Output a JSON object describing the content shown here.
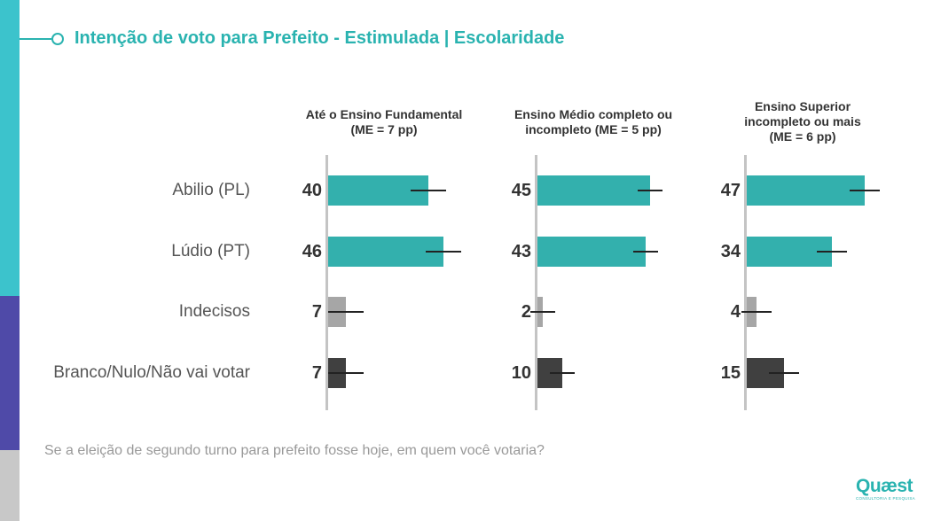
{
  "title": "Intenção de voto para Prefeito - Estimulada | Escolaridade",
  "footer": "Se a eleição de segundo turno para prefeito fosse hoje, em quem você votaria?",
  "logo": {
    "name": "Quæst",
    "tagline": "CONSULTORIA E PESQUISA"
  },
  "colors": {
    "accent": "#2ab3b0",
    "bar_candidate": "#33b0ad",
    "bar_undecided": "#a6a6a6",
    "bar_blank": "#404040",
    "sidebar": [
      "#3cc3cc",
      "#4f4aa8",
      "#c8c8c8"
    ]
  },
  "chart_data": {
    "type": "bar",
    "orientation": "horizontal",
    "categories": [
      "Abilio (PL)",
      "Lúdio (PT)",
      "Indecisos",
      "Branco/Nulo/Não vai votar"
    ],
    "panels": [
      {
        "title_lines": [
          "Até o Ensino Fundamental",
          "(ME = 7 pp)"
        ],
        "margin_of_error": 7,
        "values": [
          40,
          46,
          7,
          7
        ],
        "labels": [
          "40",
          "46",
          "7",
          "7"
        ]
      },
      {
        "title_lines": [
          "Ensino Médio completo ou",
          "incompleto (ME = 5 pp)"
        ],
        "margin_of_error": 5,
        "values": [
          45,
          43,
          2,
          10
        ],
        "labels": [
          "45",
          "43",
          "2",
          "10"
        ]
      },
      {
        "title_lines": [
          "Ensino Superior",
          "incompleto ou mais",
          "(ME = 6 pp)"
        ],
        "margin_of_error": 6,
        "values": [
          47,
          34,
          4,
          15
        ],
        "labels": [
          "47",
          "34",
          "4",
          "15"
        ]
      }
    ],
    "xlim": [
      0,
      100
    ],
    "grid": false,
    "legend": "none"
  }
}
